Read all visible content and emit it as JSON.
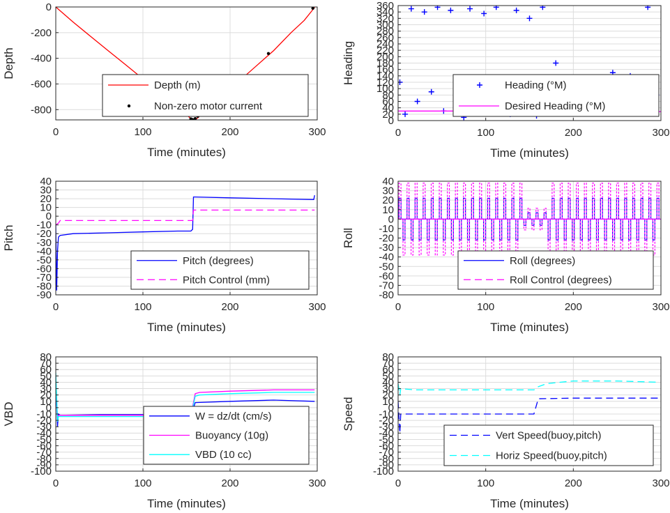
{
  "chart_data": [
    {
      "type": "line",
      "id": "depth",
      "xlabel": "Time (minutes)",
      "ylabel": "Depth",
      "xlim": [
        0,
        300
      ],
      "ylim": [
        -880,
        0
      ],
      "xticks": [
        0,
        100,
        200,
        300
      ],
      "yticks": [
        0,
        -200,
        -400,
        -600,
        -800
      ],
      "grid": true,
      "legend_position": "bottom-center",
      "series": [
        {
          "name": "Depth (m)",
          "color": "#ff0000",
          "style": "solid",
          "x": [
            0,
            20,
            40,
            60,
            80,
            100,
            120,
            140,
            155,
            158,
            162,
            170,
            190,
            210,
            230,
            250,
            270,
            285,
            297
          ],
          "y": [
            0,
            -118,
            -230,
            -340,
            -450,
            -560,
            -665,
            -780,
            -870,
            -878,
            -870,
            -820,
            -700,
            -580,
            -460,
            -340,
            -200,
            -105,
            -3
          ]
        },
        {
          "name": "Non-zero motor current",
          "color": "#000000",
          "style": "markers",
          "x": [
            155,
            157,
            160,
            163,
            205,
            244,
            295
          ],
          "y": [
            -872,
            -878,
            -870,
            -852,
            -600,
            -363,
            -10
          ]
        }
      ]
    },
    {
      "type": "scatter",
      "id": "heading",
      "xlabel": "Time (minutes)",
      "ylabel": "Heading",
      "xlim": [
        0,
        300
      ],
      "ylim": [
        0,
        360
      ],
      "xticks": [
        0,
        100,
        200,
        300
      ],
      "yticks": [
        0,
        20,
        40,
        60,
        80,
        100,
        120,
        140,
        160,
        180,
        200,
        220,
        240,
        260,
        280,
        300,
        320,
        340,
        360
      ],
      "grid": true,
      "legend_position": "center-right",
      "series": [
        {
          "name": "Heading (°M)",
          "color": "#0000ff",
          "marker": "+",
          "x": [
            2,
            8,
            15,
            22,
            30,
            38,
            45,
            52,
            60,
            68,
            75,
            82,
            90,
            98,
            105,
            112,
            120,
            128,
            135,
            142,
            150,
            158,
            165,
            172,
            180,
            188,
            195,
            205,
            215,
            225,
            235,
            245,
            255,
            265,
            275,
            285,
            295
          ],
          "y": [
            120,
            20,
            350,
            60,
            340,
            90,
            355,
            30,
            345,
            100,
            10,
            350,
            80,
            335,
            40,
            355,
            110,
            20,
            345,
            70,
            320,
            15,
            355,
            90,
            180,
            40,
            130,
            100,
            60,
            120,
            90,
            150,
            40,
            140,
            110,
            355,
            80
          ]
        },
        {
          "name": "Desired Heading (°M)",
          "color": "#ff00ff",
          "style": "solid",
          "x": [
            0,
            150,
            160,
            300
          ],
          "y": [
            30,
            30,
            28,
            28
          ]
        }
      ]
    },
    {
      "type": "line",
      "id": "pitch",
      "xlabel": "Time (minutes)",
      "ylabel": "Pitch",
      "xlim": [
        0,
        300
      ],
      "ylim": [
        -90,
        40
      ],
      "xticks": [
        0,
        100,
        200,
        300
      ],
      "yticks": [
        40,
        30,
        20,
        10,
        0,
        -10,
        -20,
        -30,
        -40,
        -50,
        -60,
        -70,
        -80,
        -90
      ],
      "grid": true,
      "legend_position": "bottom-right",
      "series": [
        {
          "name": "Pitch (degrees)",
          "color": "#0000ff",
          "style": "solid",
          "x": [
            0,
            1,
            2,
            3,
            5,
            20,
            60,
            100,
            140,
            155,
            157,
            158,
            160,
            200,
            250,
            296,
            297
          ],
          "y": [
            -10,
            -85,
            -40,
            -24,
            -22,
            -20,
            -19,
            -18,
            -17,
            -17,
            -15,
            22,
            22,
            21,
            20,
            19,
            24
          ]
        },
        {
          "name": "Pitch Control (mm)",
          "color": "#ff00ff",
          "style": "dashed",
          "x": [
            0,
            3,
            5,
            155,
            157,
            158,
            297
          ],
          "y": [
            -10,
            -8,
            -5,
            -5,
            -5,
            7,
            7
          ]
        }
      ]
    },
    {
      "type": "line",
      "id": "roll",
      "xlabel": "Time (minutes)",
      "ylabel": "Roll",
      "xlim": [
        0,
        300
      ],
      "ylim": [
        -80,
        40
      ],
      "xticks": [
        0,
        100,
        200,
        300
      ],
      "yticks": [
        40,
        30,
        20,
        10,
        0,
        -10,
        -20,
        -30,
        -40,
        -50,
        -60,
        -70,
        -80
      ],
      "grid": true,
      "legend_position": "bottom-right",
      "series": [
        {
          "name": "Roll (degrees)",
          "color": "#0000ff",
          "style": "solid",
          "x": [
            0,
            300
          ],
          "y": [
            0,
            0
          ],
          "oscillation": 22
        },
        {
          "name": "Roll Control (degrees)",
          "color": "#ff00ff",
          "style": "dashed",
          "x": [
            0,
            300
          ],
          "y": [
            0,
            0
          ],
          "oscillation": 38
        }
      ]
    },
    {
      "type": "line",
      "id": "vbd",
      "xlabel": "Time (minutes)",
      "ylabel": "VBD",
      "xlim": [
        0,
        300
      ],
      "ylim": [
        -100,
        80
      ],
      "xticks": [
        0,
        100,
        200,
        300
      ],
      "yticks": [
        80,
        70,
        60,
        50,
        40,
        30,
        20,
        10,
        0,
        -10,
        -20,
        -30,
        -40,
        -50,
        -60,
        -70,
        -80,
        -90,
        -100
      ],
      "grid": true,
      "legend_position": "bottom-right",
      "series": [
        {
          "name": "W = dz/dt (cm/s)",
          "color": "#0000ff",
          "style": "solid",
          "x": [
            0,
            2,
            3,
            5,
            50,
            100,
            155,
            157,
            160,
            200,
            250,
            297
          ],
          "y": [
            40,
            -30,
            -10,
            -12,
            -11,
            -11,
            -11,
            -5,
            8,
            10,
            12,
            10
          ]
        },
        {
          "name": "Buoyancy (10g)",
          "color": "#ff00ff",
          "style": "solid",
          "x": [
            0,
            2,
            3,
            5,
            100,
            155,
            160,
            165,
            200,
            250,
            297
          ],
          "y": [
            50,
            -20,
            -12,
            -12,
            -12,
            -12,
            22,
            24,
            26,
            28,
            28
          ]
        },
        {
          "name": "VBD (10 cc)",
          "color": "#00ffff",
          "style": "solid",
          "x": [
            0,
            2,
            3,
            5,
            100,
            155,
            160,
            165,
            200,
            250,
            297
          ],
          "y": [
            55,
            -22,
            -14,
            -14,
            -14,
            -14,
            18,
            20,
            22,
            24,
            24
          ]
        }
      ]
    },
    {
      "type": "line",
      "id": "speed",
      "xlabel": "Time (minutes)",
      "ylabel": "Speed",
      "xlim": [
        0,
        300
      ],
      "ylim": [
        -100,
        80
      ],
      "xticks": [
        0,
        100,
        200,
        300
      ],
      "yticks": [
        80,
        70,
        60,
        50,
        40,
        30,
        20,
        10,
        0,
        -10,
        -20,
        -30,
        -40,
        -50,
        -60,
        -70,
        -80,
        -90,
        -100
      ],
      "grid": true,
      "legend_position": "bottom-right",
      "series": [
        {
          "name": "Vert Speed(buoy,pitch)",
          "color": "#0000ff",
          "style": "dashed",
          "x": [
            0,
            2,
            3,
            20,
            80,
            150,
            155,
            160,
            200,
            250,
            297
          ],
          "y": [
            10,
            -40,
            -10,
            -10,
            -10,
            -10,
            -10,
            14,
            15,
            15,
            15
          ]
        },
        {
          "name": "Horiz Speed(buoy,pitch)",
          "color": "#00ffff",
          "style": "dashed",
          "x": [
            0,
            2,
            3,
            20,
            80,
            150,
            155,
            160,
            170,
            200,
            250,
            297
          ],
          "y": [
            38,
            20,
            30,
            28,
            28,
            28,
            28,
            33,
            38,
            42,
            42,
            40
          ]
        }
      ]
    }
  ]
}
